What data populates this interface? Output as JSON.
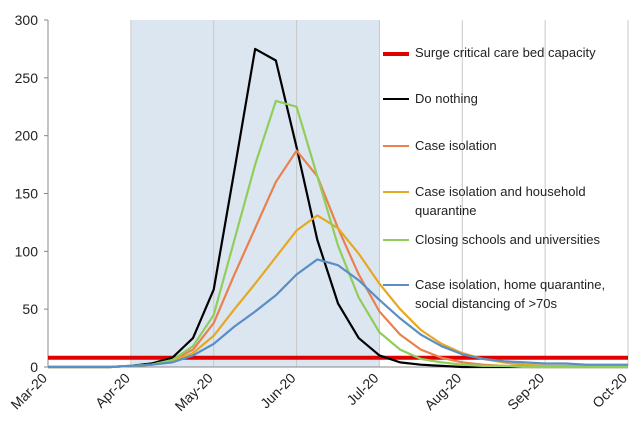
{
  "chart_data": {
    "type": "line",
    "x": [
      0,
      0.25,
      0.5,
      0.75,
      1,
      1.25,
      1.5,
      1.75,
      2,
      2.25,
      2.5,
      2.75,
      3,
      3.25,
      3.5,
      3.75,
      4,
      4.25,
      4.5,
      4.75,
      5,
      5.25,
      5.5,
      5.75,
      6,
      6.25,
      6.5,
      6.75,
      7
    ],
    "xlim": [
      0,
      7
    ],
    "xticks": [
      {
        "value": 0,
        "label": "Mar-20"
      },
      {
        "value": 1,
        "label": "Apr-20"
      },
      {
        "value": 2,
        "label": "May-20"
      },
      {
        "value": 3,
        "label": "Jun-20"
      },
      {
        "value": 4,
        "label": "Jul-20"
      },
      {
        "value": 5,
        "label": "Aug-20"
      },
      {
        "value": 6,
        "label": "Sep-20"
      },
      {
        "value": 7,
        "label": "Oct-20"
      }
    ],
    "ylim": [
      0,
      300
    ],
    "yticks": [
      0,
      50,
      100,
      150,
      200,
      250,
      300
    ],
    "shaded_range": [
      1,
      4
    ],
    "series": [
      {
        "name": "Surge critical care bed capacity",
        "color": "#e00000",
        "values": [
          8,
          8,
          8,
          8,
          8,
          8,
          8,
          8,
          8,
          8,
          8,
          8,
          8,
          8,
          8,
          8,
          8,
          8,
          8,
          8,
          8,
          8,
          8,
          8,
          8,
          8,
          8,
          8,
          8
        ]
      },
      {
        "name": "Do nothing",
        "color": "#000000",
        "values": [
          0,
          0,
          0,
          0,
          1,
          3,
          8,
          25,
          67,
          170,
          275,
          265,
          190,
          110,
          55,
          25,
          10,
          4,
          2,
          1,
          0,
          0,
          0,
          0,
          0,
          0,
          0,
          0,
          0
        ]
      },
      {
        "name": "Case isolation",
        "color": "#e9814f",
        "values": [
          0,
          0,
          0,
          0,
          1,
          2,
          6,
          15,
          38,
          80,
          120,
          160,
          187,
          165,
          120,
          80,
          48,
          28,
          15,
          8,
          4,
          2,
          1,
          1,
          0,
          0,
          0,
          0,
          0
        ]
      },
      {
        "name": "Case isolation and household quarantine",
        "color": "#e5a823",
        "values": [
          0,
          0,
          0,
          0,
          1,
          2,
          5,
          12,
          27,
          50,
          72,
          95,
          118,
          131,
          120,
          98,
          72,
          50,
          32,
          20,
          12,
          7,
          4,
          2,
          1,
          1,
          1,
          1,
          1
        ]
      },
      {
        "name": "Closing schools and universities",
        "color": "#8fce5a",
        "values": [
          0,
          0,
          0,
          0,
          1,
          2,
          6,
          18,
          45,
          110,
          175,
          230,
          225,
          165,
          105,
          60,
          30,
          15,
          7,
          4,
          2,
          1,
          1,
          0,
          0,
          0,
          0,
          0,
          0
        ]
      },
      {
        "name": "Case isolation, home quarantine, social distancing of >70s",
        "color": "#5b8ec4",
        "values": [
          0,
          0,
          0,
          0,
          1,
          2,
          4,
          10,
          20,
          35,
          48,
          62,
          80,
          93,
          88,
          75,
          58,
          42,
          28,
          18,
          11,
          7,
          5,
          4,
          3,
          3,
          2,
          2,
          2
        ]
      }
    ]
  }
}
